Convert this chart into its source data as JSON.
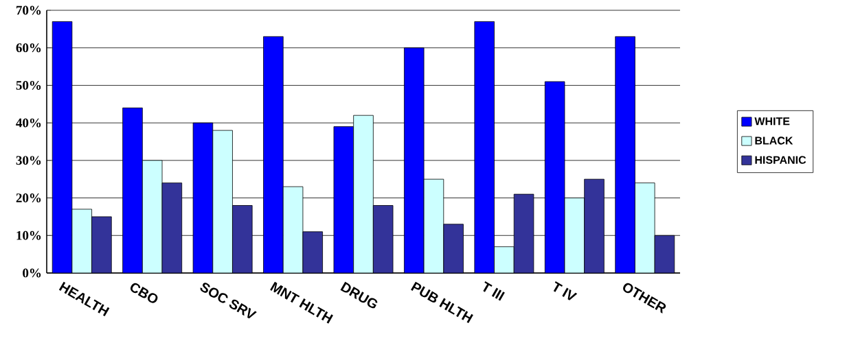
{
  "chart_data": {
    "type": "bar",
    "categories": [
      "HEALTH",
      "CBO",
      "SOC SRV",
      "MNT HLTH",
      "DRUG",
      "PUB HLTH",
      "T III",
      "T IV",
      "OTHER"
    ],
    "series": [
      {
        "name": "WHITE",
        "color": "#0000ff",
        "values": [
          67,
          44,
          40,
          63,
          39,
          60,
          67,
          51,
          63
        ]
      },
      {
        "name": "BLACK",
        "color": "#ccffff",
        "values": [
          17,
          30,
          38,
          23,
          42,
          25,
          7,
          20,
          24
        ]
      },
      {
        "name": "HISPANIC",
        "color": "#333399",
        "values": [
          15,
          24,
          18,
          11,
          18,
          13,
          21,
          25,
          10
        ]
      }
    ],
    "ylim": [
      0,
      70
    ],
    "yticks": [
      {
        "value": 0,
        "label": "0%"
      },
      {
        "value": 10,
        "label": "10%"
      },
      {
        "value": 20,
        "label": "20%"
      },
      {
        "value": 30,
        "label": "30%"
      },
      {
        "value": 40,
        "label": "40%"
      },
      {
        "value": 50,
        "label": "50%"
      },
      {
        "value": 60,
        "label": "60%"
      },
      {
        "value": 70,
        "label": "70%"
      }
    ],
    "grid": "y",
    "legend": "right"
  }
}
